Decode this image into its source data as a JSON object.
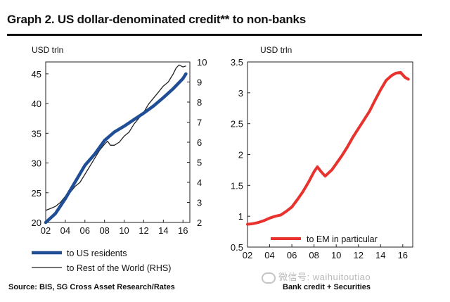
{
  "title": "Graph 2. US dollar-denominated credit** to non-banks",
  "source_left": "Source: BIS, SG Cross Asset Research/Rates",
  "source_right": "Bank credit + Securities",
  "watermark": "微信号: waihuitoutiao",
  "chart_data": [
    {
      "type": "line",
      "unit_label": "USD trln",
      "x_ticks": [
        "02",
        "04",
        "06",
        "08",
        "10",
        "12",
        "14",
        "16"
      ],
      "xlim": [
        2002,
        2016.7
      ],
      "y_left": {
        "ticks": [
          20,
          25,
          30,
          35,
          40,
          45
        ],
        "lim": [
          20,
          47
        ]
      },
      "y_right": {
        "ticks": [
          2,
          3,
          4,
          5,
          6,
          7,
          8,
          9,
          10
        ],
        "lim": [
          2,
          10
        ]
      },
      "series": [
        {
          "name": "to US residents",
          "axis": "left",
          "color": "#1f4e96",
          "x": [
            2002.0,
            2003.0,
            2004.0,
            2005.0,
            2006.0,
            2007.0,
            2008.0,
            2008.5,
            2009.0,
            2010.0,
            2011.0,
            2012.0,
            2013.0,
            2014.0,
            2015.0,
            2016.0,
            2016.3
          ],
          "values": [
            20.0,
            21.5,
            24.0,
            26.8,
            29.6,
            31.5,
            33.8,
            34.5,
            35.2,
            36.2,
            37.3,
            38.4,
            39.6,
            41.0,
            42.5,
            44.2,
            45.0
          ]
        },
        {
          "name": "to Rest of the World (RHS)",
          "axis": "right",
          "color": "#222222",
          "x": [
            2002.0,
            2002.5,
            2003.0,
            2003.5,
            2004.0,
            2004.5,
            2005.0,
            2005.5,
            2006.0,
            2006.5,
            2007.0,
            2007.5,
            2008.0,
            2008.3,
            2008.6,
            2009.0,
            2009.5,
            2010.0,
            2010.5,
            2011.0,
            2011.5,
            2012.0,
            2012.5,
            2013.0,
            2013.5,
            2014.0,
            2014.5,
            2015.0,
            2015.3,
            2015.6,
            2016.0,
            2016.3
          ],
          "values": [
            2.6,
            2.7,
            2.8,
            3.0,
            3.3,
            3.5,
            3.8,
            4.0,
            4.4,
            4.8,
            5.2,
            5.6,
            5.9,
            6.05,
            5.85,
            5.85,
            6.0,
            6.3,
            6.5,
            6.9,
            7.2,
            7.5,
            7.9,
            8.2,
            8.5,
            8.8,
            9.0,
            9.4,
            9.7,
            9.85,
            9.75,
            9.8
          ]
        }
      ]
    },
    {
      "type": "line",
      "unit_label": "USD trln",
      "x_ticks": [
        "02",
        "04",
        "06",
        "08",
        "10",
        "12",
        "14",
        "16"
      ],
      "xlim": [
        2002,
        2016.9
      ],
      "y_left": {
        "ticks": [
          0.5,
          1,
          1.5,
          2,
          2.5,
          3,
          3.5
        ],
        "lim": [
          0.5,
          3.5
        ]
      },
      "series": [
        {
          "name": "to EM in particular",
          "color": "#e8322d",
          "x": [
            2002.0,
            2002.5,
            2003.0,
            2003.5,
            2004.0,
            2004.5,
            2005.0,
            2005.5,
            2006.0,
            2006.5,
            2007.0,
            2007.5,
            2008.0,
            2008.3,
            2008.6,
            2009.0,
            2009.3,
            2009.6,
            2010.0,
            2010.5,
            2011.0,
            2011.5,
            2012.0,
            2012.5,
            2013.0,
            2013.5,
            2014.0,
            2014.5,
            2015.0,
            2015.4,
            2015.8,
            2016.2,
            2016.5
          ],
          "values": [
            0.87,
            0.88,
            0.9,
            0.93,
            0.97,
            1.0,
            1.02,
            1.08,
            1.15,
            1.27,
            1.4,
            1.55,
            1.72,
            1.8,
            1.73,
            1.65,
            1.7,
            1.75,
            1.85,
            1.98,
            2.12,
            2.28,
            2.42,
            2.56,
            2.7,
            2.88,
            3.05,
            3.2,
            3.28,
            3.32,
            3.33,
            3.25,
            3.22
          ]
        }
      ]
    }
  ]
}
